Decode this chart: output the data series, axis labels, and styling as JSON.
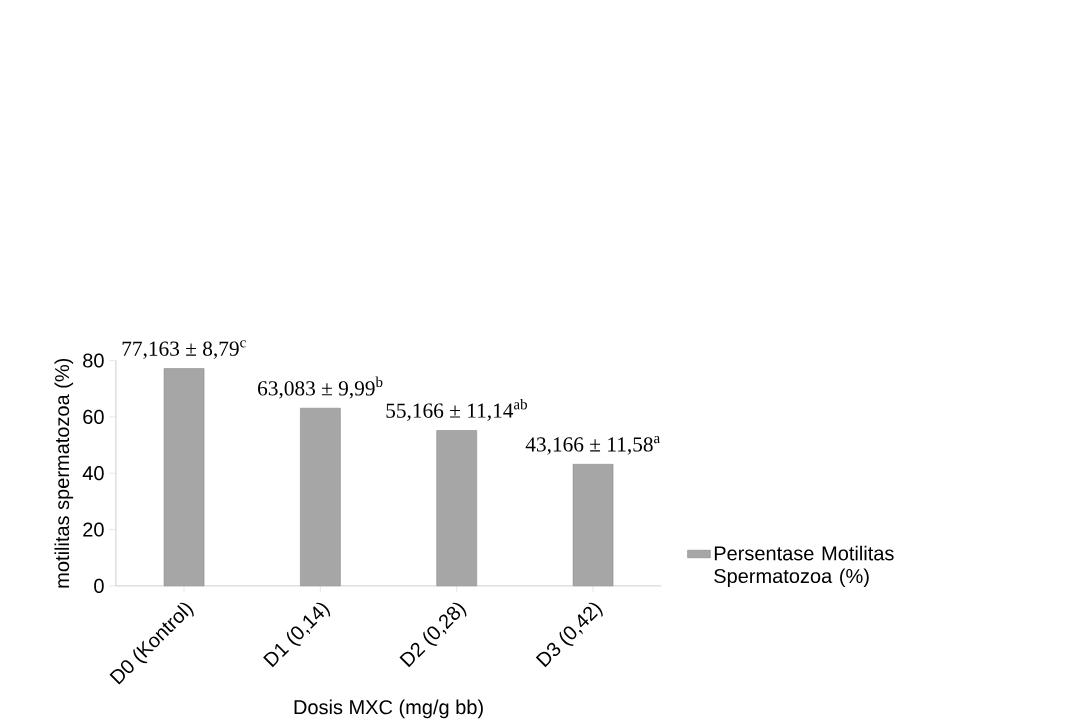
{
  "chart_data": {
    "type": "bar",
    "xlabel": "Dosis MXC (mg/g bb)",
    "ylabel": "motilitas spermatozoa (%)",
    "categories": [
      "D0 (Kontrol)",
      "D1 (0,14)",
      "D2 (0,28)",
      "D3 (0,42)"
    ],
    "series": [
      {
        "name": "Persentase Motilitas Spermatozoa (%)",
        "color": "#a6a6a6",
        "values": [
          77.163,
          63.083,
          55.166,
          43.166
        ],
        "value_labels": [
          "77,163 ± 8,79$^{c}$",
          "63,083 ± 9,99$^{b}$",
          "55,166 ± 11,14$^{ab}$",
          "43,166 ± 11,58$^{a}$"
        ]
      }
    ],
    "ylim": [
      0,
      80
    ],
    "yticks": [
      0,
      20,
      40,
      60,
      80
    ],
    "legend": "right",
    "grid": false
  }
}
